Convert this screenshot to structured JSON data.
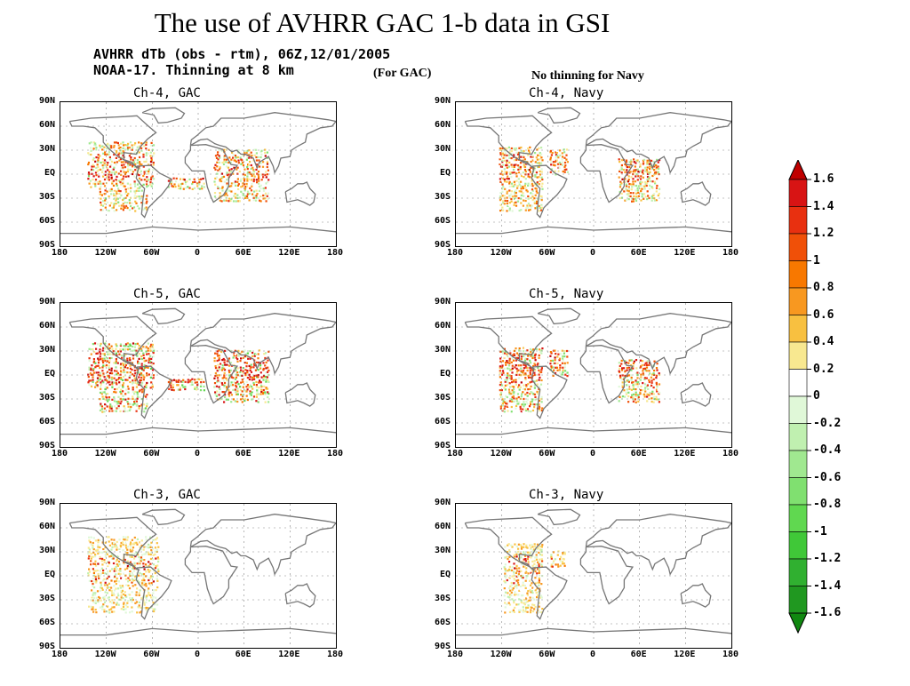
{
  "title": "The use of AVHRR GAC 1-b data in GSI",
  "header_line1": "AVHRR dTb (obs - rtm), 06Z,12/01/2005",
  "header_line2": "NOAA-17. Thinning at 8 km",
  "header_note": "(For GAC)",
  "navy_note": "No thinning for Navy",
  "panels": [
    {
      "title": "Ch-4, GAC",
      "coverage": "gac",
      "intensity": 0.6
    },
    {
      "title": "Ch-4, Navy",
      "coverage": "navy",
      "intensity": 0.55
    },
    {
      "title": "Ch-5, GAC",
      "coverage": "gac",
      "intensity": 0.8
    },
    {
      "title": "Ch-5, Navy",
      "coverage": "navy",
      "intensity": 0.7
    },
    {
      "title": "Ch-3, GAC",
      "coverage": "gac3",
      "intensity": 0.35
    },
    {
      "title": "Ch-3, Navy",
      "coverage": "navy3",
      "intensity": 0.35
    }
  ],
  "y_ticks": [
    "90N",
    "60N",
    "30N",
    "EQ",
    "30S",
    "60S",
    "90S"
  ],
  "x_ticks": [
    "180",
    "120W",
    "60W",
    "0",
    "60E",
    "120E",
    "180"
  ],
  "colorbar": {
    "labels": [
      "1.6",
      "1.4",
      "1.2",
      "1",
      "0.8",
      "0.6",
      "0.4",
      "0.2",
      "0",
      "-0.2",
      "-0.4",
      "-0.6",
      "-0.8",
      "-1",
      "-1.2",
      "-1.4",
      "-1.6"
    ],
    "colors": [
      "#c00000",
      "#d81414",
      "#e83010",
      "#f05008",
      "#f87800",
      "#f89820",
      "#f8c040",
      "#f8e890",
      "#ffffff",
      "#e0f8d8",
      "#c0f0b0",
      "#a0e890",
      "#80e070",
      "#60d850",
      "#40c838",
      "#30b030",
      "#209820",
      "#108810"
    ]
  }
}
